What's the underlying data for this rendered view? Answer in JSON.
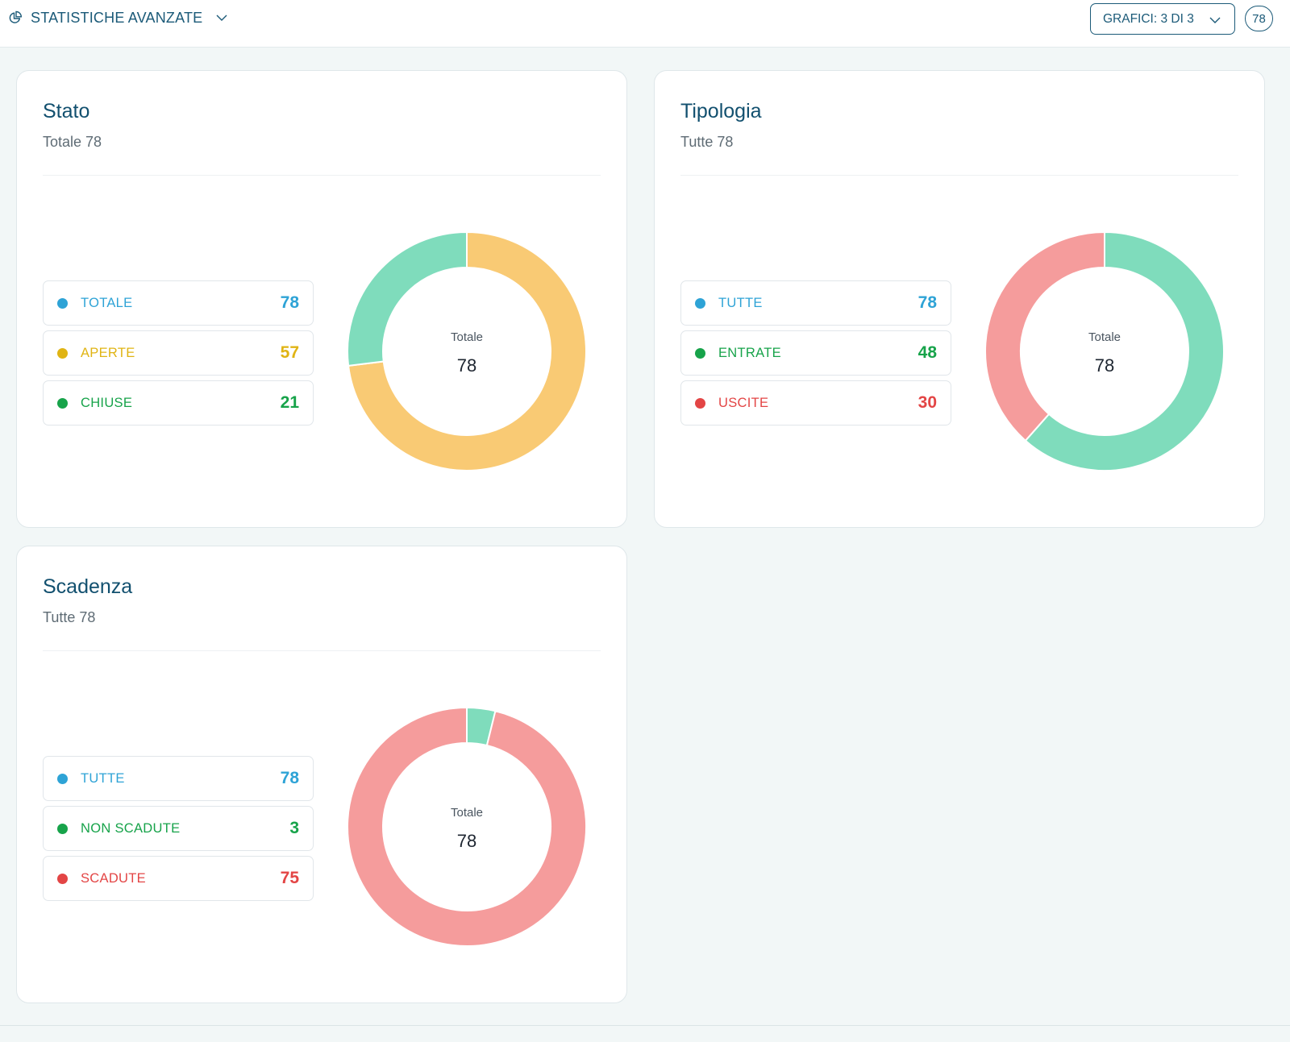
{
  "header": {
    "title": "STATISTICHE AVANZATE",
    "charts_button_label": "GRAFICI: 3 DI 3",
    "count_badge": "78"
  },
  "colors": {
    "accent": "#1b5a78",
    "blue": "#2ea3d6",
    "yellow": "#e0b414",
    "green": "#17a34a",
    "red": "#e34545",
    "ring_yellow": "#f9ca74",
    "ring_green": "#7fdcbc",
    "ring_red": "#f59c9c"
  },
  "cards": [
    {
      "title": "Stato",
      "subtitle": "Totale 78",
      "legend": [
        {
          "label": "TOTALE",
          "value": "78"
        },
        {
          "label": "APERTE",
          "value": "57"
        },
        {
          "label": "CHIUSE",
          "value": "21"
        }
      ],
      "center_label": "Totale",
      "center_value": "78"
    },
    {
      "title": "Tipologia",
      "subtitle": "Tutte 78",
      "legend": [
        {
          "label": "TUTTE",
          "value": "78"
        },
        {
          "label": "ENTRATE",
          "value": "48"
        },
        {
          "label": "USCITE",
          "value": "30"
        }
      ],
      "center_label": "Totale",
      "center_value": "78"
    },
    {
      "title": "Scadenza",
      "subtitle": "Tutte 78",
      "legend": [
        {
          "label": "TUTTE",
          "value": "78"
        },
        {
          "label": "NON SCADUTE",
          "value": "3"
        },
        {
          "label": "SCADUTE",
          "value": "75"
        }
      ],
      "center_label": "Totale",
      "center_value": "78"
    }
  ],
  "chart_data": [
    {
      "type": "pie",
      "title": "Stato",
      "categories": [
        "APERTE",
        "CHIUSE"
      ],
      "values": [
        57,
        21
      ],
      "colors": [
        "#f9ca74",
        "#7fdcbc"
      ],
      "total": 78
    },
    {
      "type": "pie",
      "title": "Tipologia",
      "categories": [
        "ENTRATE",
        "USCITE"
      ],
      "values": [
        48,
        30
      ],
      "colors": [
        "#7fdcbc",
        "#f59c9c"
      ],
      "total": 78
    },
    {
      "type": "pie",
      "title": "Scadenza",
      "categories": [
        "NON SCADUTE",
        "SCADUTE"
      ],
      "values": [
        3,
        75
      ],
      "colors": [
        "#7fdcbc",
        "#f59c9c"
      ],
      "total": 78
    }
  ]
}
